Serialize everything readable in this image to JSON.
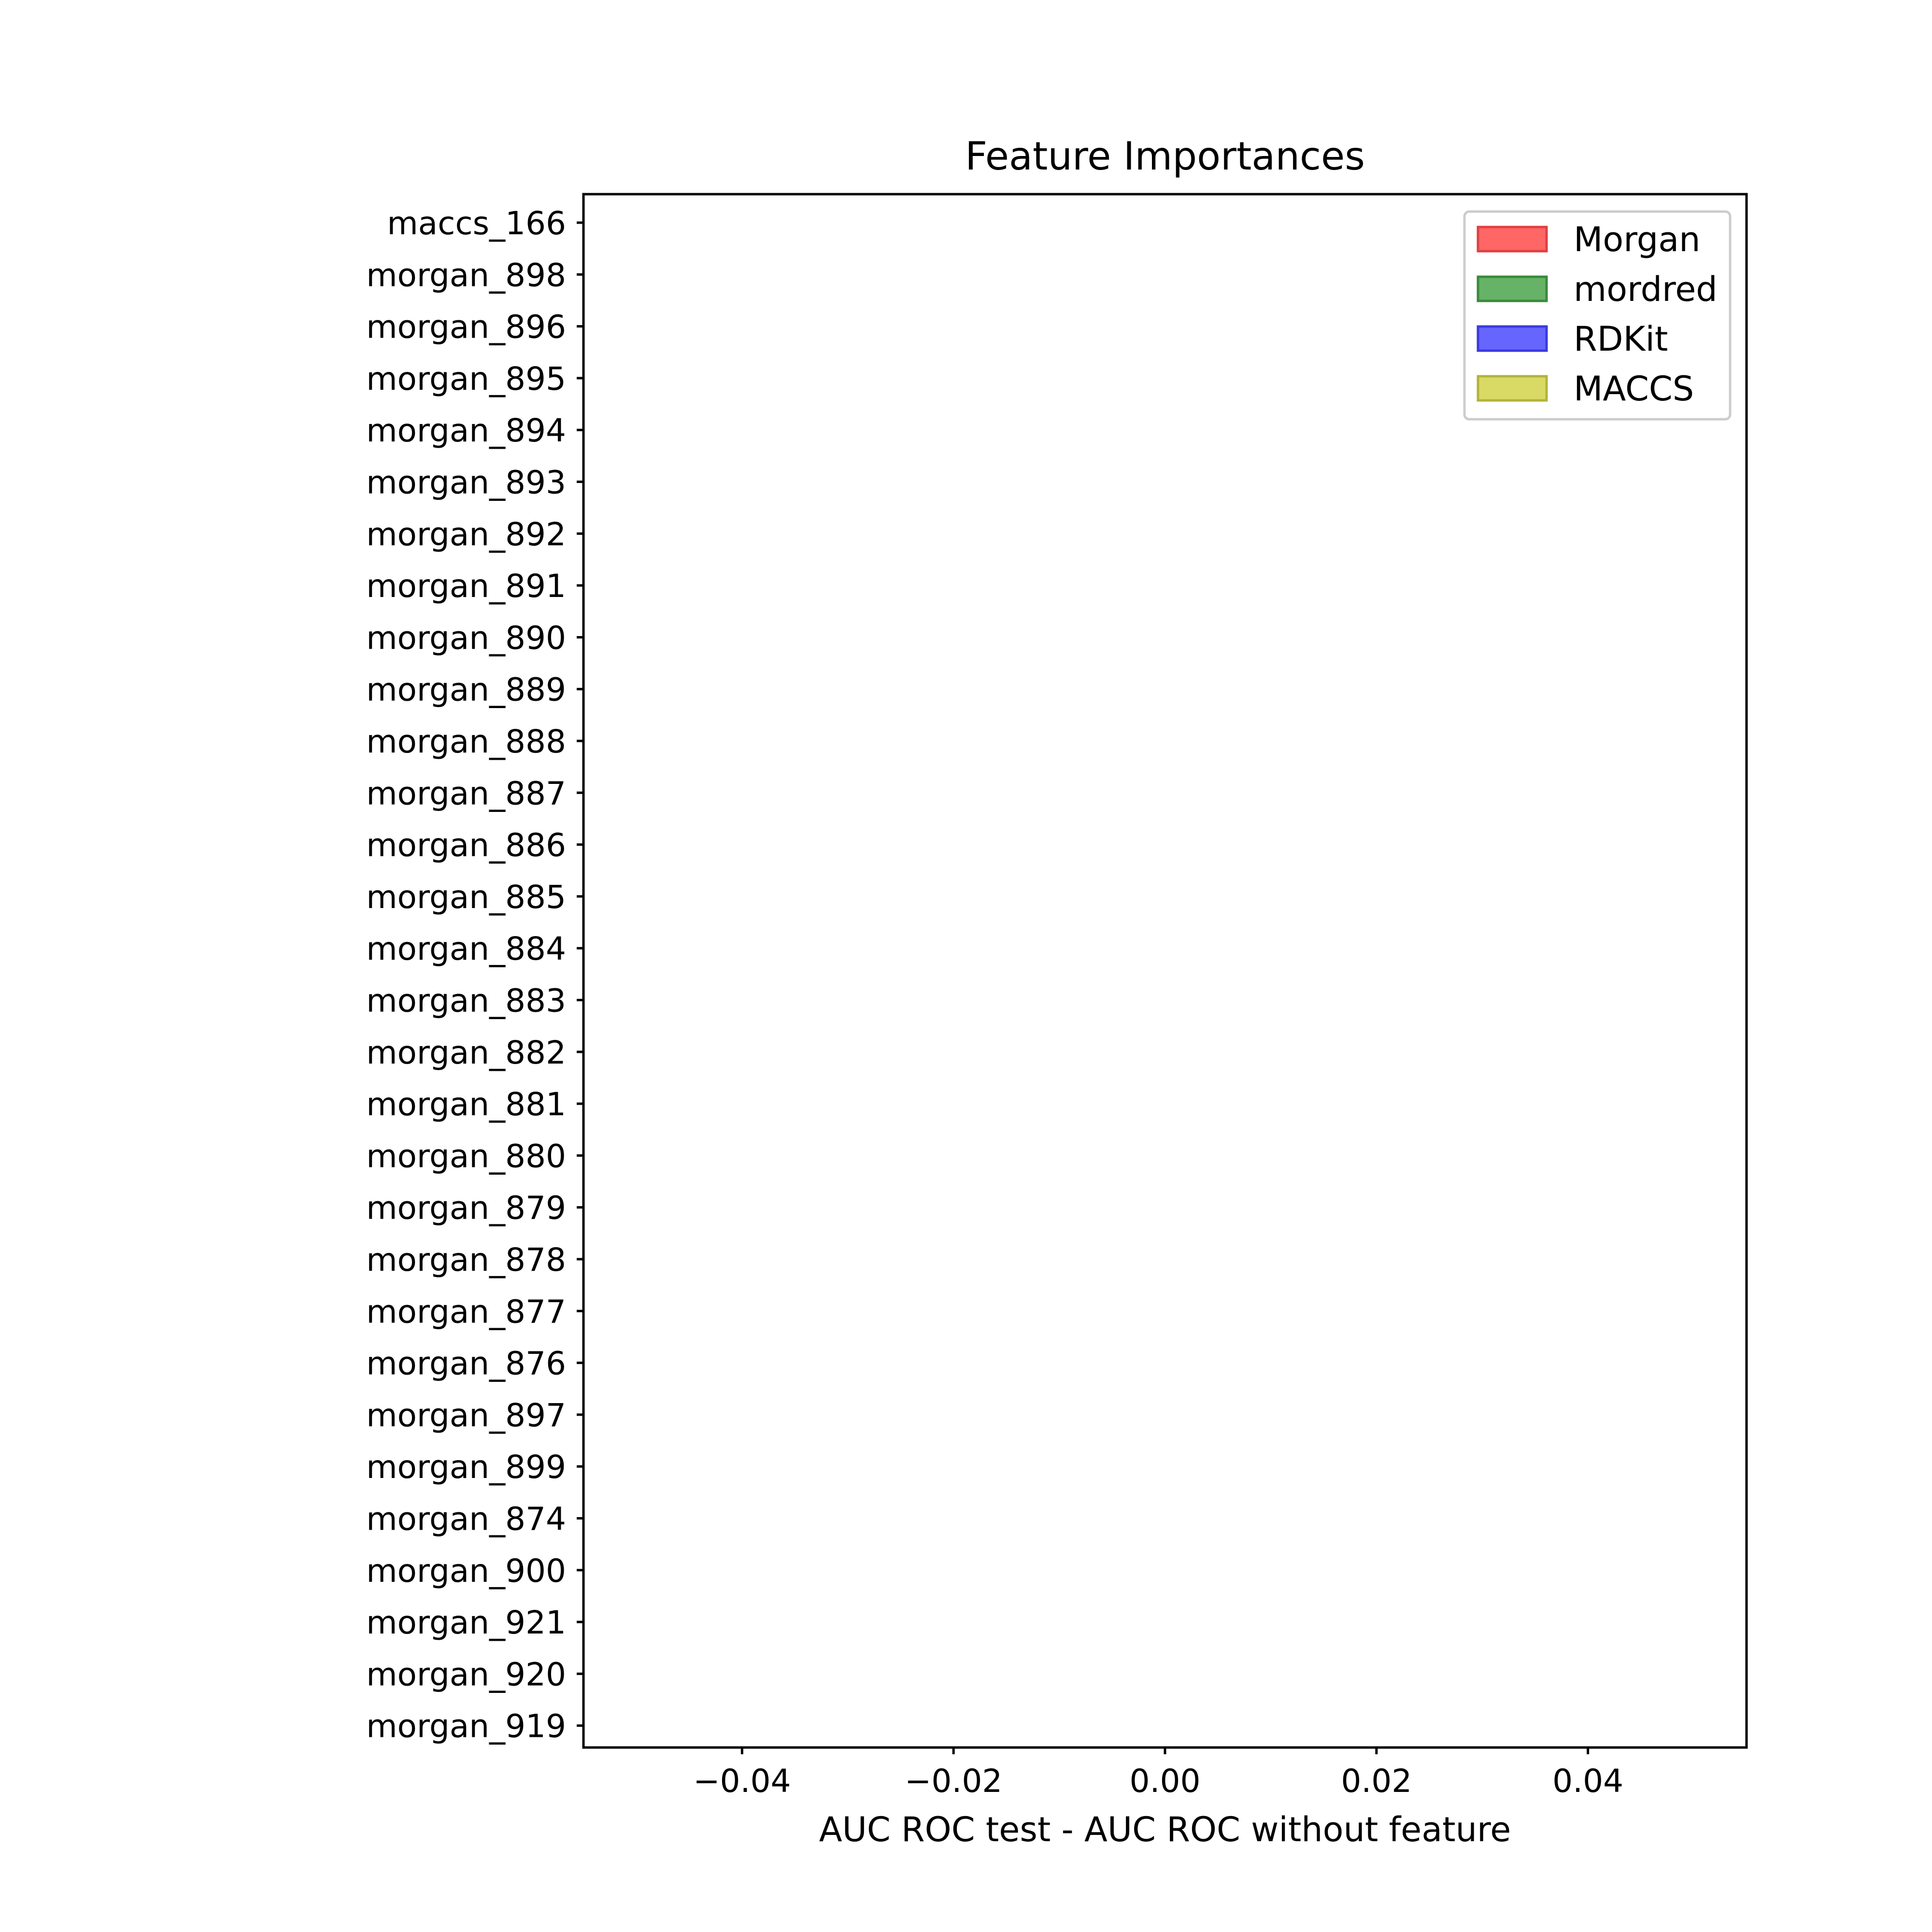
{
  "chart_data": {
    "type": "bar",
    "orientation": "horizontal",
    "title": "Feature Importances",
    "xlabel": "AUC ROC test - AUC ROC without feature",
    "ylabel": "",
    "xlim": [
      -0.055,
      0.055
    ],
    "xticks": [
      {
        "value": -0.04,
        "label": "−0.04"
      },
      {
        "value": -0.02,
        "label": "−0.02"
      },
      {
        "value": 0.0,
        "label": "0.00"
      },
      {
        "value": 0.02,
        "label": "0.02"
      },
      {
        "value": 0.04,
        "label": "0.04"
      }
    ],
    "categories": [
      "maccs_166",
      "morgan_898",
      "morgan_896",
      "morgan_895",
      "morgan_894",
      "morgan_893",
      "morgan_892",
      "morgan_891",
      "morgan_890",
      "morgan_889",
      "morgan_888",
      "morgan_887",
      "morgan_886",
      "morgan_885",
      "morgan_884",
      "morgan_883",
      "morgan_882",
      "morgan_881",
      "morgan_880",
      "morgan_879",
      "morgan_878",
      "morgan_877",
      "morgan_876",
      "morgan_897",
      "morgan_899",
      "morgan_874",
      "morgan_900",
      "morgan_921",
      "morgan_920",
      "morgan_919"
    ],
    "values": [
      0,
      0,
      0,
      0,
      0,
      0,
      0,
      0,
      0,
      0,
      0,
      0,
      0,
      0,
      0,
      0,
      0,
      0,
      0,
      0,
      0,
      0,
      0,
      0,
      0,
      0,
      0,
      0,
      0,
      0
    ],
    "legend": {
      "placement": "top-right",
      "entries": [
        {
          "label": "Morgan",
          "color": "#ff6666",
          "edge": "#e04040"
        },
        {
          "label": "mordred",
          "color": "#66b266",
          "edge": "#3a8a3a"
        },
        {
          "label": "RDKit",
          "color": "#6666ff",
          "edge": "#3a3ae0"
        },
        {
          "label": "MACCS",
          "color": "#d9d966",
          "edge": "#b3b33a"
        }
      ]
    },
    "grid": false
  }
}
